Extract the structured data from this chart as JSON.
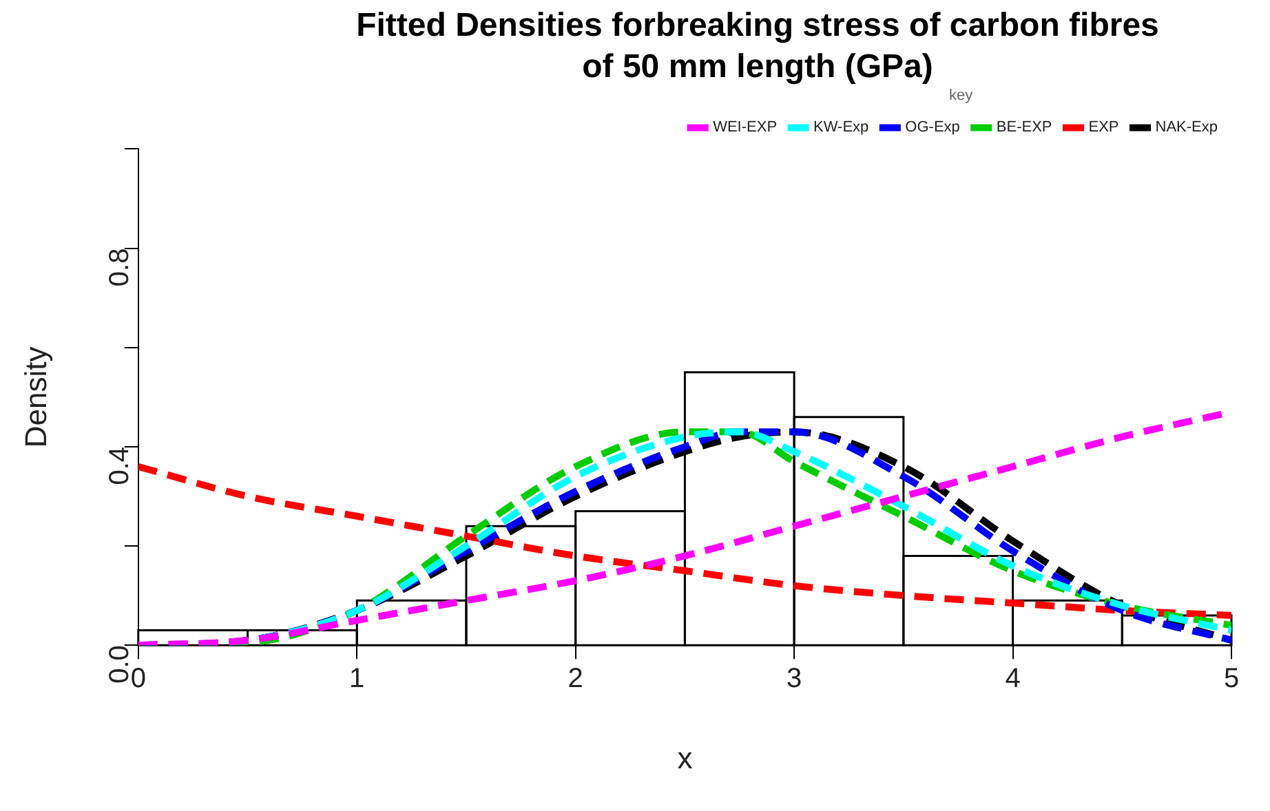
{
  "chart_data": {
    "type": "histogram",
    "title": "Fitted Densities forbreaking stress of carbon fibres of 50 mm length (GPa)",
    "xlabel": "x",
    "ylabel": "Density",
    "legend_title": "key",
    "legend": "top right",
    "grid": false,
    "line_style": "dashed",
    "marker": "none",
    "bins": [
      0,
      0.5,
      1,
      1.5,
      2,
      2.5,
      3,
      3.5,
      4,
      4.5,
      5
    ],
    "values": [
      0.03,
      0.03,
      0.09,
      0.24,
      0.27,
      0.55,
      0.46,
      0.18,
      0.09,
      0.06
    ],
    "xlim": [
      0,
      5
    ],
    "xticks": [
      0,
      1,
      2,
      3,
      4,
      5
    ],
    "ylim": [
      0,
      1
    ],
    "yticks": [
      {
        "value": 0,
        "label": "0.0"
      },
      {
        "value": 0.2,
        "label": null
      },
      {
        "value": 0.4,
        "label": "0.4"
      },
      {
        "value": 0.6,
        "label": null
      },
      {
        "value": 0.8,
        "label": "0.8"
      },
      {
        "value": 1,
        "label": null
      }
    ],
    "series": [
      {
        "type": "line",
        "name": "NAK-Exp",
        "color": "#000000",
        "x": [
          0,
          0.5,
          1,
          1.5,
          2,
          2.5,
          2.75,
          3,
          3.5,
          4,
          4.5,
          5
        ],
        "values": [
          0,
          0.01,
          0.07,
          0.18,
          0.3,
          0.39,
          0.42,
          0.43,
          0.36,
          0.21,
          0.08,
          0.01
        ]
      },
      {
        "type": "line",
        "name": "EXP",
        "color": "#ff0000",
        "x": [
          0,
          0.5,
          1,
          1.5,
          2,
          2.5,
          3,
          3.5,
          4,
          4.5,
          5
        ],
        "values": [
          0.36,
          0.3,
          0.26,
          0.22,
          0.18,
          0.15,
          0.12,
          0.1,
          0.085,
          0.07,
          0.06
        ]
      },
      {
        "type": "line",
        "name": "BE-EXP",
        "color": "#00cd00",
        "x": [
          0,
          0.5,
          1,
          1.5,
          2,
          2.5,
          2.75,
          3,
          3.5,
          4,
          4.5,
          5
        ],
        "values": [
          0,
          0.005,
          0.07,
          0.22,
          0.36,
          0.43,
          0.43,
          0.37,
          0.26,
          0.15,
          0.08,
          0.04
        ]
      },
      {
        "type": "line",
        "name": "OG-Exp",
        "color": "#0000ff",
        "x": [
          0,
          0.5,
          1,
          1.5,
          2,
          2.5,
          2.75,
          3,
          3.5,
          4,
          4.5,
          5
        ],
        "values": [
          0,
          0.01,
          0.07,
          0.19,
          0.31,
          0.4,
          0.43,
          0.43,
          0.34,
          0.19,
          0.07,
          0.01
        ]
      },
      {
        "type": "line",
        "name": "KW-Exp",
        "color": "#00ffff",
        "x": [
          0,
          0.5,
          1,
          1.5,
          2,
          2.5,
          2.75,
          3,
          3.5,
          4,
          4.5,
          5
        ],
        "values": [
          0,
          0.01,
          0.07,
          0.2,
          0.34,
          0.42,
          0.43,
          0.39,
          0.28,
          0.16,
          0.08,
          0.03
        ]
      },
      {
        "type": "line",
        "name": "WEI-EXP",
        "color": "#ff00ff",
        "x": [
          0,
          0.5,
          1,
          1.5,
          2,
          2.5,
          3,
          3.5,
          4,
          4.5,
          5
        ],
        "values": [
          0,
          0.01,
          0.05,
          0.09,
          0.13,
          0.18,
          0.24,
          0.3,
          0.36,
          0.42,
          0.47
        ]
      }
    ]
  }
}
